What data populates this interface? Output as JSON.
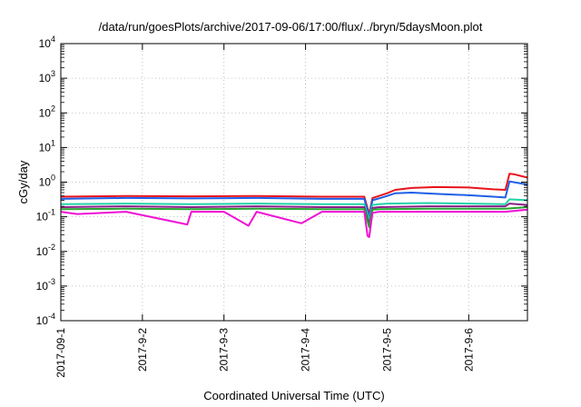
{
  "chart_data": {
    "type": "line",
    "title": "/data/run/goesPlots/archive/2017-09-06/17:00/flux/../bryn/5daysMoon.plot",
    "xlabel": "Coordinated Universal Time (UTC)",
    "ylabel": "cGy/day",
    "yscale": "log",
    "ylim": [
      0.0001,
      10000
    ],
    "xlim": [
      0,
      5.72
    ],
    "x_unit": "days since 2017-09-01",
    "grid": true,
    "y_ticks": [
      {
        "mant": "10",
        "exp": "-4",
        "value": 0.0001
      },
      {
        "mant": "10",
        "exp": "-3",
        "value": 0.001
      },
      {
        "mant": "10",
        "exp": "-2",
        "value": 0.01
      },
      {
        "mant": "10",
        "exp": "-1",
        "value": 0.1
      },
      {
        "mant": "10",
        "exp": "0",
        "value": 1
      },
      {
        "mant": "10",
        "exp": "1",
        "value": 10
      },
      {
        "mant": "10",
        "exp": "2",
        "value": 100
      },
      {
        "mant": "10",
        "exp": "3",
        "value": 1000
      },
      {
        "mant": "10",
        "exp": "4",
        "value": 10000
      }
    ],
    "x_ticks": [
      {
        "label": "2017-09-1",
        "value": 0
      },
      {
        "label": "2017-9-2",
        "value": 1
      },
      {
        "label": "2017-9-3",
        "value": 2
      },
      {
        "label": "2017-9-4",
        "value": 3
      },
      {
        "label": "2017-9-5",
        "value": 4
      },
      {
        "label": "2017-9-6",
        "value": 5
      }
    ],
    "series": [
      {
        "color": "#e8141c",
        "x": [
          0,
          0.8,
          1.6,
          2.4,
          3.2,
          3.72,
          3.78,
          3.82,
          3.9,
          4.0,
          4.1,
          4.3,
          4.6,
          5.0,
          5.3,
          5.45,
          5.5,
          5.55,
          5.72
        ],
        "y": [
          0.38,
          0.4,
          0.39,
          0.4,
          0.38,
          0.38,
          0.12,
          0.35,
          0.4,
          0.48,
          0.6,
          0.68,
          0.72,
          0.7,
          0.62,
          0.6,
          1.75,
          1.7,
          1.35
        ]
      },
      {
        "color": "#1f5fe6",
        "x": [
          0,
          0.8,
          1.6,
          2.4,
          3.2,
          3.72,
          3.78,
          3.82,
          3.9,
          4.0,
          4.1,
          4.3,
          4.6,
          5.0,
          5.3,
          5.45,
          5.5,
          5.55,
          5.72
        ],
        "y": [
          0.33,
          0.35,
          0.34,
          0.35,
          0.33,
          0.33,
          0.1,
          0.3,
          0.34,
          0.4,
          0.48,
          0.5,
          0.46,
          0.42,
          0.38,
          0.36,
          1.05,
          1.0,
          0.85
        ]
      },
      {
        "color": "#22d4a8",
        "x": [
          0,
          0.8,
          1.6,
          2.4,
          3.2,
          3.72,
          3.78,
          3.82,
          3.9,
          4.0,
          4.5,
          5.0,
          5.45,
          5.5,
          5.72
        ],
        "y": [
          0.23,
          0.24,
          0.23,
          0.24,
          0.23,
          0.23,
          0.08,
          0.22,
          0.23,
          0.24,
          0.25,
          0.24,
          0.23,
          0.32,
          0.3
        ]
      },
      {
        "color": "#8a1f8a",
        "x": [
          0,
          0.8,
          1.6,
          2.4,
          3.2,
          3.72,
          3.78,
          3.82,
          3.9,
          4.5,
          5.0,
          5.45,
          5.5,
          5.72
        ],
        "y": [
          0.19,
          0.2,
          0.19,
          0.2,
          0.19,
          0.19,
          0.06,
          0.18,
          0.19,
          0.2,
          0.2,
          0.2,
          0.24,
          0.22
        ]
      },
      {
        "color": "#27a02f",
        "x": [
          0,
          0.8,
          1.6,
          2.4,
          3.2,
          3.72,
          3.78,
          3.82,
          3.9,
          4.5,
          5.0,
          5.45,
          5.72
        ],
        "y": [
          0.165,
          0.17,
          0.165,
          0.17,
          0.165,
          0.165,
          0.05,
          0.16,
          0.165,
          0.17,
          0.17,
          0.17,
          0.19
        ]
      },
      {
        "color": "#ee10d4",
        "x": [
          0,
          0.2,
          0.8,
          1.55,
          1.6,
          2.0,
          2.3,
          2.4,
          2.95,
          3.2,
          3.5,
          3.72,
          3.76,
          3.78,
          3.82,
          3.9,
          4.5,
          5.0,
          5.45,
          5.72
        ],
        "y": [
          0.14,
          0.12,
          0.14,
          0.06,
          0.14,
          0.14,
          0.055,
          0.14,
          0.065,
          0.14,
          0.14,
          0.14,
          0.028,
          0.026,
          0.13,
          0.14,
          0.14,
          0.14,
          0.14,
          0.16
        ]
      }
    ]
  }
}
